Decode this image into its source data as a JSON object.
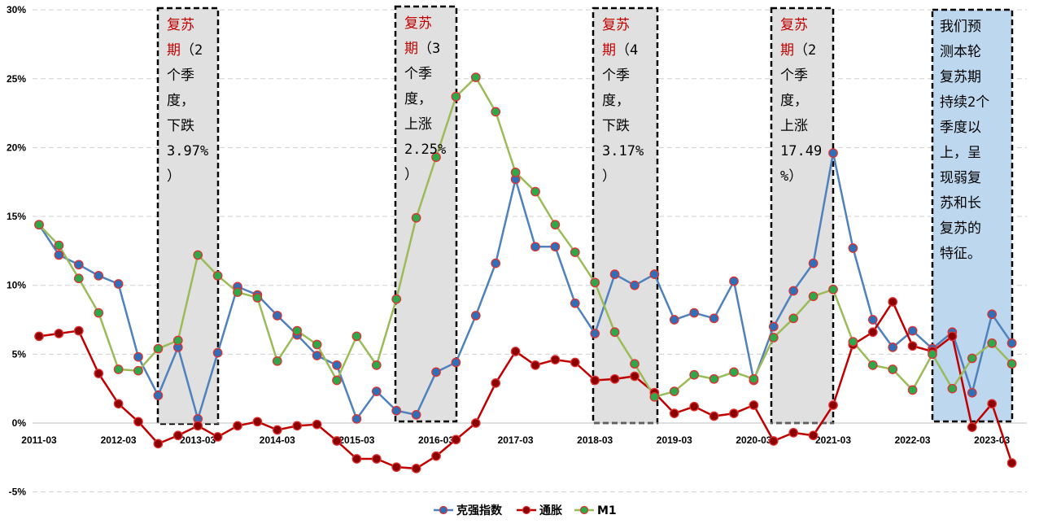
{
  "chart_data": {
    "type": "line",
    "title": "",
    "xlabel": "",
    "ylabel": "",
    "ylim": [
      -5,
      30
    ],
    "yticks": [
      "-5%",
      "0%",
      "5%",
      "10%",
      "15%",
      "20%",
      "25%",
      "30%"
    ],
    "xtick_labels": [
      "2011-03",
      "2012-03",
      "2013-03",
      "2014-03",
      "2015-03",
      "2016-03",
      "2017-03",
      "2018-03",
      "2019-03",
      "2020-03",
      "2021-03",
      "2022-03",
      "2023-03"
    ],
    "x_start": "2011-03",
    "x_frequency": "quarterly",
    "grid": "horizontal dashed",
    "legend": "bottom",
    "series": [
      {
        "name": "克强指数",
        "color": "#4f81bd",
        "marker_fill": "#2e6fb7",
        "values": [
          14.4,
          12.2,
          11.5,
          10.7,
          10.1,
          4.8,
          2.0,
          5.5,
          0.3,
          5.1,
          9.9,
          9.3,
          7.8,
          6.4,
          4.9,
          4.2,
          0.3,
          2.3,
          0.9,
          0.6,
          3.7,
          4.4,
          7.8,
          11.6,
          17.7,
          12.8,
          12.8,
          8.7,
          6.5,
          10.8,
          10.0,
          10.8,
          7.5,
          8.0,
          7.6,
          10.3,
          3.1,
          7.0,
          9.6,
          11.6,
          19.6,
          12.7,
          7.5,
          5.5,
          6.7,
          5.4,
          6.6,
          2.2,
          7.9,
          5.8
        ]
      },
      {
        "name": "通胀",
        "color": "#c00000",
        "marker_fill": "#8b0000",
        "values": [
          6.3,
          6.5,
          6.7,
          3.6,
          1.4,
          0.1,
          -1.5,
          -0.9,
          -0.2,
          -1.0,
          -0.2,
          0.1,
          -0.5,
          -0.2,
          -0.1,
          -1.3,
          -2.6,
          -2.6,
          -3.2,
          -3.3,
          -2.4,
          -1.2,
          0.0,
          2.9,
          5.2,
          4.2,
          4.6,
          4.4,
          3.1,
          3.2,
          3.4,
          2.2,
          0.7,
          1.2,
          0.5,
          0.7,
          1.3,
          -1.3,
          -0.7,
          -0.9,
          1.3,
          5.7,
          6.6,
          8.8,
          5.6,
          5.2,
          6.3,
          -0.3,
          1.4,
          -2.9
        ]
      },
      {
        "name": "M1",
        "color": "#9bbb59",
        "marker_fill": "#2ea84a",
        "values": [
          14.4,
          12.9,
          10.5,
          8.0,
          3.9,
          3.8,
          5.4,
          6.0,
          12.2,
          10.7,
          9.5,
          9.1,
          4.5,
          6.7,
          5.7,
          3.1,
          6.3,
          4.2,
          9.0,
          14.9,
          19.3,
          23.7,
          25.1,
          22.6,
          18.2,
          16.8,
          14.4,
          12.4,
          10.2,
          6.6,
          4.3,
          1.9,
          2.3,
          3.5,
          3.2,
          3.7,
          3.2,
          6.2,
          7.6,
          9.2,
          9.7,
          5.9,
          4.2,
          3.9,
          2.4,
          5.0,
          2.5,
          4.7,
          5.8,
          4.3
        ]
      }
    ],
    "marker_edge_color": "#e03030",
    "annotations": [
      {
        "fill": "#e0e0e0",
        "lines": [
          {
            "red": "复苏",
            "text": ""
          },
          {
            "red": "期",
            "text": "（2"
          },
          {
            "red": "",
            "text": "个季"
          },
          {
            "red": "",
            "text": "度，"
          },
          {
            "red": "",
            "text": "下跌"
          },
          {
            "red": "",
            "text": "3.97%"
          },
          {
            "red": "",
            "text": "）"
          }
        ]
      },
      {
        "fill": "#e0e0e0",
        "lines": [
          {
            "red": "复苏",
            "text": ""
          },
          {
            "red": "期",
            "text": "（3"
          },
          {
            "red": "",
            "text": "个季"
          },
          {
            "red": "",
            "text": "度，"
          },
          {
            "red": "",
            "text": "上涨"
          },
          {
            "red": "",
            "text": "2.25%"
          },
          {
            "red": "",
            "text": "）"
          }
        ]
      },
      {
        "fill": "#e0e0e0",
        "lines": [
          {
            "red": "复苏",
            "text": ""
          },
          {
            "red": "期",
            "text": "（4"
          },
          {
            "red": "",
            "text": "个季"
          },
          {
            "red": "",
            "text": "度，"
          },
          {
            "red": "",
            "text": "下跌"
          },
          {
            "red": "",
            "text": "3.17%"
          },
          {
            "red": "",
            "text": "）"
          }
        ]
      },
      {
        "fill": "#e0e0e0",
        "lines": [
          {
            "red": "复苏",
            "text": ""
          },
          {
            "red": "期",
            "text": "（2"
          },
          {
            "red": "",
            "text": "个季"
          },
          {
            "red": "",
            "text": "度，"
          },
          {
            "red": "",
            "text": "上涨"
          },
          {
            "red": "",
            "text": "17.49"
          },
          {
            "red": "",
            "text": "%）"
          }
        ]
      },
      {
        "fill": "#bdd7ee",
        "lines": [
          {
            "red": "",
            "text": "我们预"
          },
          {
            "red": "",
            "text": "测本轮"
          },
          {
            "red": "",
            "text": "复苏期"
          },
          {
            "red": "",
            "text": "持续2个"
          },
          {
            "red": "",
            "text": "季度以"
          },
          {
            "red": "",
            "text": "上，呈"
          },
          {
            "red": "",
            "text": "现弱复"
          },
          {
            "red": "",
            "text": "苏和长"
          },
          {
            "red": "",
            "text": "复苏的"
          },
          {
            "red": "",
            "text": "特征。"
          }
        ]
      }
    ]
  }
}
